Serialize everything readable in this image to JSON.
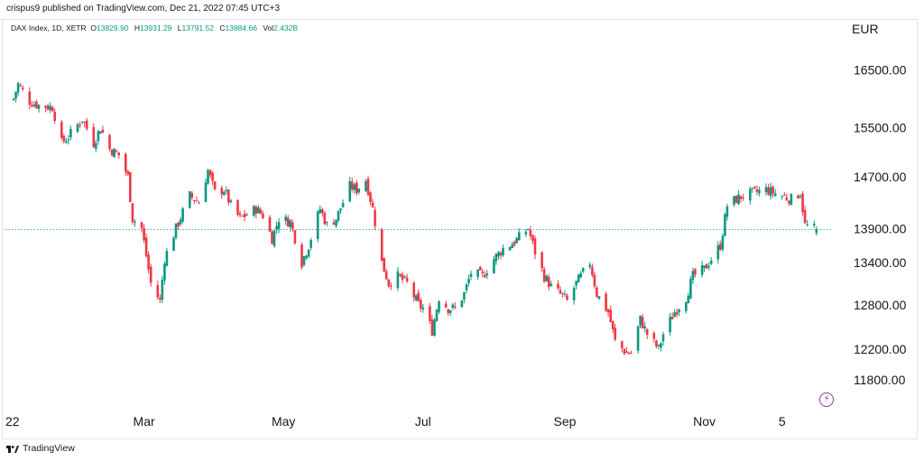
{
  "header": {
    "published_by": "crispus9 published on TradingView.com, Dec 21, 2022 07:45 UTC+3"
  },
  "legend": {
    "symbol": "DAX Index, 1D, XETR",
    "open_label": "O",
    "open_value": "13829.90",
    "high_label": "H",
    "high_value": "13931.29",
    "low_label": "L",
    "low_value": "13791.52",
    "close_label": "C",
    "close_value": "13884.66",
    "vol_label": "Vol",
    "vol_value": "2.432B"
  },
  "currency": "EUR",
  "colors": {
    "up": "#089981",
    "down": "#f23645",
    "price_line": "#089981",
    "axis_text": "#131722",
    "flash_icon": "#9c27b0"
  },
  "footer": {
    "brand": "TradingView"
  },
  "icons": {
    "flash": "lightning-bolt-icon",
    "brand_logo": "tradingview-logo-icon"
  },
  "chart_data": {
    "type": "candlestick",
    "title": "DAX Index, 1D, XETR",
    "ylabel": "EUR",
    "y_scale": "log",
    "ylim": [
      11450,
      16950
    ],
    "y_ticks": [
      "16500.00",
      "15500.00",
      "14700.00",
      "13900.00",
      "13400.00",
      "12800.00",
      "12200.00",
      "11800.00"
    ],
    "x_ticks": [
      "22",
      "Mar",
      "May",
      "Jul",
      "Sep",
      "Nov",
      "5"
    ],
    "last_price": 13884.66,
    "close_path": [
      [
        "2022-01-03",
        16000
      ],
      [
        "2022-01-05",
        16250
      ],
      [
        "2022-01-10",
        15950
      ],
      [
        "2022-01-14",
        15880
      ],
      [
        "2022-01-20",
        15850
      ],
      [
        "2022-01-24",
        15250
      ],
      [
        "2022-01-27",
        15350
      ],
      [
        "2022-02-02",
        15650
      ],
      [
        "2022-02-07",
        15250
      ],
      [
        "2022-02-10",
        15500
      ],
      [
        "2022-02-14",
        15150
      ],
      [
        "2022-02-18",
        15050
      ],
      [
        "2022-02-22",
        14700
      ],
      [
        "2022-02-24",
        14050
      ],
      [
        "2022-02-28",
        13900
      ],
      [
        "2022-03-04",
        13100
      ],
      [
        "2022-03-08",
        12850
      ],
      [
        "2022-03-10",
        13450
      ],
      [
        "2022-03-15",
        13900
      ],
      [
        "2022-03-21",
        14400
      ],
      [
        "2022-03-25",
        14300
      ],
      [
        "2022-03-29",
        14800
      ],
      [
        "2022-04-01",
        14450
      ],
      [
        "2022-04-05",
        14500
      ],
      [
        "2022-04-08",
        14250
      ],
      [
        "2022-04-12",
        14050
      ],
      [
        "2022-04-19",
        14200
      ],
      [
        "2022-04-22",
        14100
      ],
      [
        "2022-04-26",
        13750
      ],
      [
        "2022-04-29",
        14050
      ],
      [
        "2022-05-04",
        14000
      ],
      [
        "2022-05-09",
        13400
      ],
      [
        "2022-05-12",
        13650
      ],
      [
        "2022-05-17",
        14200
      ],
      [
        "2022-05-20",
        13950
      ],
      [
        "2022-05-24",
        14050
      ],
      [
        "2022-05-30",
        14550
      ],
      [
        "2022-06-02",
        14500
      ],
      [
        "2022-06-06",
        14650
      ],
      [
        "2022-06-09",
        14200
      ],
      [
        "2022-06-13",
        13400
      ],
      [
        "2022-06-16",
        13100
      ],
      [
        "2022-06-20",
        13200
      ],
      [
        "2022-06-24",
        13100
      ],
      [
        "2022-06-29",
        12800
      ],
      [
        "2022-07-01",
        12750
      ],
      [
        "2022-07-05",
        12450
      ],
      [
        "2022-07-08",
        12900
      ],
      [
        "2022-07-12",
        12750
      ],
      [
        "2022-07-15",
        12750
      ],
      [
        "2022-07-19",
        12950
      ],
      [
        "2022-07-22",
        13250
      ],
      [
        "2022-07-27",
        13200
      ],
      [
        "2022-08-01",
        13450
      ],
      [
        "2022-08-05",
        13600
      ],
      [
        "2022-08-10",
        13700
      ],
      [
        "2022-08-16",
        13900
      ],
      [
        "2022-08-19",
        13550
      ],
      [
        "2022-08-23",
        13200
      ],
      [
        "2022-08-26",
        13050
      ],
      [
        "2022-08-30",
        12950
      ],
      [
        "2022-09-02",
        12850
      ],
      [
        "2022-09-06",
        13100
      ],
      [
        "2022-09-12",
        13400
      ],
      [
        "2022-09-15",
        12950
      ],
      [
        "2022-09-20",
        12700
      ],
      [
        "2022-09-23",
        12300
      ],
      [
        "2022-09-28",
        12150
      ],
      [
        "2022-09-30",
        12150
      ],
      [
        "2022-10-04",
        12600
      ],
      [
        "2022-10-07",
        12400
      ],
      [
        "2022-10-12",
        12200
      ],
      [
        "2022-10-14",
        12400
      ],
      [
        "2022-10-19",
        12700
      ],
      [
        "2022-10-24",
        12900
      ],
      [
        "2022-10-27",
        13200
      ],
      [
        "2022-11-01",
        13300
      ],
      [
        "2022-11-04",
        13450
      ],
      [
        "2022-11-08",
        13650
      ],
      [
        "2022-11-11",
        14250
      ],
      [
        "2022-11-15",
        14350
      ],
      [
        "2022-11-18",
        14400
      ],
      [
        "2022-11-23",
        14450
      ],
      [
        "2022-11-28",
        14500
      ],
      [
        "2022-12-01",
        14450
      ],
      [
        "2022-12-05",
        14400
      ],
      [
        "2022-12-09",
        14350
      ],
      [
        "2022-12-13",
        14450
      ],
      [
        "2022-12-15",
        13950
      ],
      [
        "2022-12-20",
        13884.66
      ]
    ]
  }
}
